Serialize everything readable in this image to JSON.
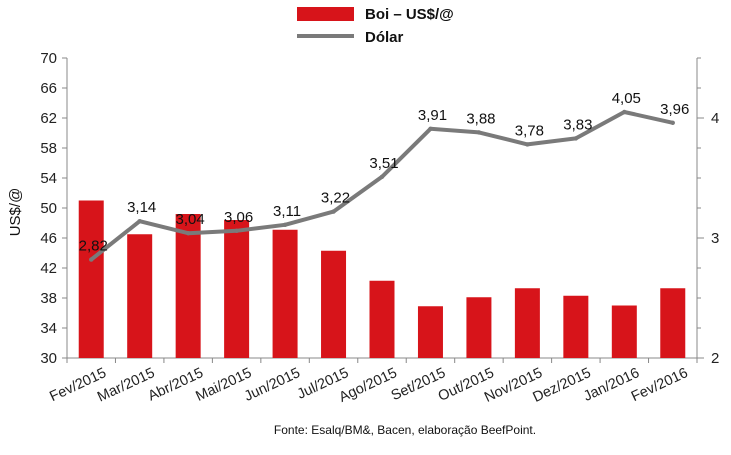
{
  "chart_data": {
    "type": "bar",
    "categories": [
      "Fev/2015",
      "Mar/2015",
      "Abr/2015",
      "Mai/2015",
      "Jun/2015",
      "Jul/2015",
      "Ago/2015",
      "Set/2015",
      "Out/2015",
      "Nov/2015",
      "Dez/2015",
      "Jan/2016",
      "Fev/2016"
    ],
    "series": [
      {
        "name": "Boi – US$/@",
        "type": "bar",
        "axis": "left",
        "color": "#d7141a",
        "values": [
          51.0,
          46.5,
          49.2,
          48.4,
          47.1,
          44.3,
          40.3,
          36.9,
          38.1,
          39.3,
          38.3,
          37.0,
          39.3
        ]
      },
      {
        "name": "Dólar",
        "type": "line",
        "axis": "right",
        "color": "#7a7a7a",
        "values": [
          2.82,
          3.14,
          3.04,
          3.06,
          3.11,
          3.22,
          3.51,
          3.91,
          3.88,
          3.78,
          3.83,
          4.05,
          3.96
        ],
        "labels": [
          "2,82",
          "3,14",
          "3,04",
          "3,06",
          "3,11",
          "3,22",
          "3,51",
          "3,91",
          "3,88",
          "3,78",
          "3,83",
          "4,05",
          "3,96"
        ]
      }
    ],
    "ylabel": "US$/@",
    "ylim": [
      30,
      70
    ],
    "yticks": [
      30,
      34,
      38,
      42,
      46,
      50,
      54,
      58,
      62,
      66,
      70
    ],
    "y2lim": [
      2,
      4.5
    ],
    "y2ticks": [
      2,
      3,
      4
    ],
    "legend": "top",
    "grid": false,
    "source": "Fonte:  Esalq/BM&,  Bacen,  elaboração  BeefPoint."
  }
}
